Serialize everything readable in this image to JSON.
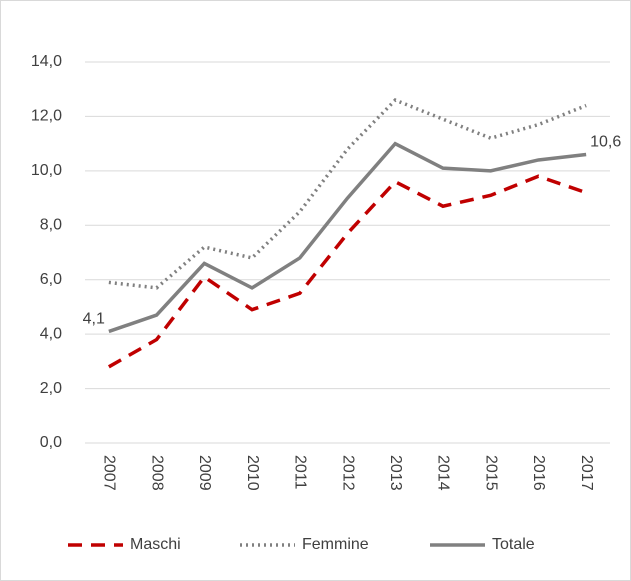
{
  "chart_data": {
    "type": "line",
    "categories": [
      "2007",
      "2008",
      "2009",
      "2010",
      "2011",
      "2012",
      "2013",
      "2014",
      "2015",
      "2016",
      "2017"
    ],
    "series": [
      {
        "name": "Maschi",
        "color": "#c00000",
        "dash": "dashed",
        "values": [
          2.8,
          3.8,
          6.1,
          4.9,
          5.5,
          7.7,
          9.6,
          8.7,
          9.1,
          9.8,
          9.2
        ]
      },
      {
        "name": "Femmine",
        "color": "#808080",
        "dash": "dotted",
        "values": [
          5.9,
          5.7,
          7.2,
          6.8,
          8.5,
          10.8,
          12.6,
          11.9,
          11.2,
          11.7,
          12.4
        ]
      },
      {
        "name": "Totale",
        "color": "#808080",
        "dash": "solid",
        "values": [
          4.1,
          4.7,
          6.6,
          5.7,
          6.8,
          9.0,
          11.0,
          10.1,
          10.0,
          10.4,
          10.6
        ],
        "value_labels": [
          "4,1",
          null,
          null,
          null,
          null,
          null,
          null,
          null,
          null,
          null,
          "10,6"
        ]
      }
    ],
    "ylim": [
      0,
      14
    ],
    "yticks": [
      {
        "value": 0,
        "label": "0,0"
      },
      {
        "value": 2,
        "label": "2,0"
      },
      {
        "value": 4,
        "label": "4,0"
      },
      {
        "value": 6,
        "label": "6,0"
      },
      {
        "value": 8,
        "label": "8,0"
      },
      {
        "value": 10,
        "label": "10,0"
      },
      {
        "value": 12,
        "label": "12,0"
      },
      {
        "value": 14,
        "label": "14,0"
      }
    ],
    "grid": true,
    "legend": "bottom"
  }
}
